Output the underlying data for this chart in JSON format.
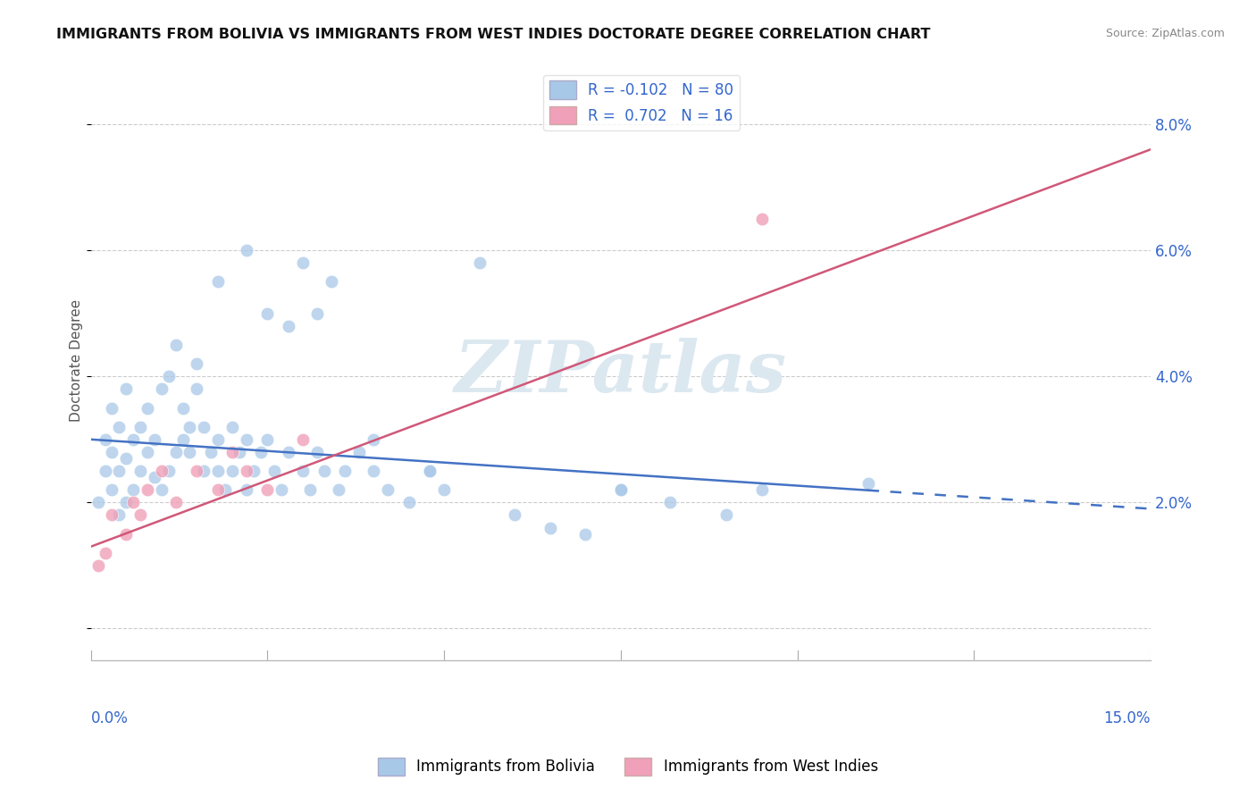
{
  "title": "IMMIGRANTS FROM BOLIVIA VS IMMIGRANTS FROM WEST INDIES DOCTORATE DEGREE CORRELATION CHART",
  "source": "Source: ZipAtlas.com",
  "ylabel": "Doctorate Degree",
  "xlim": [
    0.0,
    0.15
  ],
  "ylim": [
    -0.005,
    0.09
  ],
  "yticks": [
    0.0,
    0.02,
    0.04,
    0.06,
    0.08
  ],
  "ytick_labels": [
    "",
    "2.0%",
    "4.0%",
    "6.0%",
    "8.0%"
  ],
  "bolivia_R": -0.102,
  "bolivia_N": 80,
  "westindies_R": 0.702,
  "westindies_N": 16,
  "bolivia_color": "#a8c8e8",
  "westindies_color": "#f0a0b8",
  "bolivia_line_color": "#4472c4",
  "westindies_line_color": "#d05878",
  "watermark_text": "ZIPatlas",
  "watermark_color": "#dce8f0",
  "background_color": "#ffffff",
  "grid_color": "#cccccc",
  "legend_R_color": "#3366cc",
  "bolivia_line_solid_end": 0.11,
  "bolivia_line_x0": 0.0,
  "bolivia_line_y0": 0.03,
  "bolivia_line_x1": 0.15,
  "bolivia_line_y1": 0.019,
  "westindies_line_x0": 0.0,
  "westindies_line_y0": 0.013,
  "westindies_line_x1": 0.15,
  "westindies_line_y1": 0.076,
  "bolivia_scatter_x": [
    0.001,
    0.002,
    0.002,
    0.003,
    0.003,
    0.003,
    0.004,
    0.004,
    0.004,
    0.005,
    0.005,
    0.005,
    0.006,
    0.006,
    0.007,
    0.007,
    0.008,
    0.008,
    0.009,
    0.009,
    0.01,
    0.01,
    0.011,
    0.011,
    0.012,
    0.012,
    0.013,
    0.013,
    0.014,
    0.014,
    0.015,
    0.015,
    0.016,
    0.016,
    0.017,
    0.018,
    0.018,
    0.019,
    0.02,
    0.02,
    0.021,
    0.022,
    0.022,
    0.023,
    0.024,
    0.025,
    0.026,
    0.027,
    0.028,
    0.03,
    0.031,
    0.032,
    0.033,
    0.035,
    0.036,
    0.038,
    0.04,
    0.042,
    0.045,
    0.048,
    0.05,
    0.055,
    0.06,
    0.065,
    0.07,
    0.075,
    0.082,
    0.09,
    0.048,
    0.075,
    0.095,
    0.11,
    0.018,
    0.022,
    0.025,
    0.028,
    0.03,
    0.032,
    0.034,
    0.04
  ],
  "bolivia_scatter_y": [
    0.02,
    0.025,
    0.03,
    0.022,
    0.028,
    0.035,
    0.018,
    0.025,
    0.032,
    0.02,
    0.027,
    0.038,
    0.022,
    0.03,
    0.025,
    0.032,
    0.028,
    0.035,
    0.024,
    0.03,
    0.022,
    0.038,
    0.025,
    0.04,
    0.028,
    0.045,
    0.03,
    0.035,
    0.032,
    0.028,
    0.038,
    0.042,
    0.025,
    0.032,
    0.028,
    0.03,
    0.025,
    0.022,
    0.032,
    0.025,
    0.028,
    0.03,
    0.022,
    0.025,
    0.028,
    0.03,
    0.025,
    0.022,
    0.028,
    0.025,
    0.022,
    0.028,
    0.025,
    0.022,
    0.025,
    0.028,
    0.025,
    0.022,
    0.02,
    0.025,
    0.022,
    0.058,
    0.018,
    0.016,
    0.015,
    0.022,
    0.02,
    0.018,
    0.025,
    0.022,
    0.022,
    0.023,
    0.055,
    0.06,
    0.05,
    0.048,
    0.058,
    0.05,
    0.055,
    0.03
  ],
  "westindies_scatter_x": [
    0.001,
    0.002,
    0.003,
    0.005,
    0.006,
    0.007,
    0.008,
    0.01,
    0.012,
    0.015,
    0.018,
    0.02,
    0.022,
    0.025,
    0.03,
    0.095
  ],
  "westindies_scatter_y": [
    0.01,
    0.012,
    0.018,
    0.015,
    0.02,
    0.018,
    0.022,
    0.025,
    0.02,
    0.025,
    0.022,
    0.028,
    0.025,
    0.022,
    0.03,
    0.065
  ]
}
